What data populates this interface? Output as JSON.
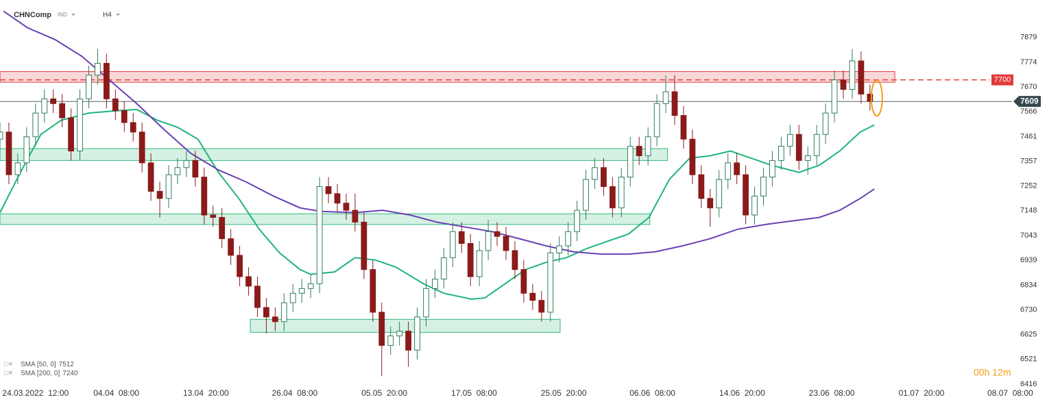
{
  "chart_data": {
    "type": "candlestick",
    "symbol": "CHNComp",
    "market": "IND",
    "interval": "H4",
    "countdown": "00h 12m",
    "xlim": [
      0,
      114
    ],
    "ylim": [
      6405,
      8037
    ],
    "yticks": [
      7879,
      7774,
      7670,
      7566,
      7461,
      7357,
      7252,
      7148,
      7043,
      6939,
      6834,
      6730,
      6625,
      6521,
      6416
    ],
    "xticks": [
      {
        "value": 4,
        "label": "24.03.2022  12:00"
      },
      {
        "value": 13.1,
        "label": "04.04  08:00"
      },
      {
        "value": 23.2,
        "label": "13.04  20:00"
      },
      {
        "value": 33.2,
        "label": "26.04  08:00"
      },
      {
        "value": 43.3,
        "label": "05.05  20:00"
      },
      {
        "value": 53.4,
        "label": "17.05  08:00"
      },
      {
        "value": 63.5,
        "label": "25.05  20:00"
      },
      {
        "value": 73.5,
        "label": "06.06  08:00"
      },
      {
        "value": 83.6,
        "label": "14.06  20:00"
      },
      {
        "value": 93.7,
        "label": "23.06  08:00"
      },
      {
        "value": 103.8,
        "label": "01.07  20:00"
      },
      {
        "value": 113.8,
        "label": "08.07  08:00"
      }
    ],
    "up_color": "#2e7d5b",
    "down_color": "#8b1a1a",
    "x": [
      0,
      1,
      2,
      3,
      4,
      5,
      6,
      7,
      8,
      9,
      10,
      11,
      12,
      13,
      14,
      15,
      16,
      17,
      18,
      19,
      20,
      21,
      22,
      23,
      24,
      25,
      26,
      27,
      28,
      29,
      30,
      31,
      32,
      33,
      34,
      35,
      36,
      37,
      38,
      39,
      40,
      41,
      42,
      43,
      44,
      45,
      46,
      47,
      48,
      49,
      50,
      51,
      52,
      53,
      54,
      55,
      56,
      57,
      58,
      59,
      60,
      61,
      62,
      63,
      64,
      65,
      66,
      67,
      68,
      69,
      70,
      71,
      72,
      73,
      74,
      75,
      76,
      77,
      78,
      79,
      80,
      81,
      82,
      83,
      84,
      85,
      86,
      87,
      88,
      89,
      90,
      91,
      92,
      93,
      94,
      95,
      96,
      97,
      98
    ],
    "open": [
      7450,
      7480,
      7300,
      7350,
      7460,
      7560,
      7620,
      7600,
      7540,
      7400,
      7620,
      7720,
      7770,
      7620,
      7570,
      7520,
      7480,
      7350,
      7230,
      7200,
      7300,
      7330,
      7360,
      7290,
      7130,
      7120,
      7030,
      6960,
      6870,
      6830,
      6740,
      6700,
      6680,
      6760,
      6800,
      6820,
      6840,
      7250,
      7220,
      7180,
      7150,
      7100,
      6900,
      6720,
      6580,
      6620,
      6640,
      6560,
      6700,
      6820,
      6860,
      6950,
      7060,
      7010,
      6870,
      6980,
      7060,
      7040,
      6980,
      6900,
      6800,
      6770,
      6720,
      6970,
      7000,
      7060,
      7150,
      7280,
      7330,
      7250,
      7160,
      7290,
      7420,
      7380,
      7460,
      7600,
      7650,
      7550,
      7450,
      7300,
      7200,
      7160,
      7280,
      7350,
      7300,
      7130,
      7210,
      7290,
      7360,
      7420,
      7470,
      7360,
      7380,
      7470,
      7560,
      7700,
      7660,
      7780,
      7640
    ],
    "high": [
      7520,
      7520,
      7390,
      7500,
      7600,
      7660,
      7660,
      7640,
      7580,
      7660,
      7760,
      7830,
      7810,
      7660,
      7610,
      7560,
      7520,
      7390,
      7270,
      7340,
      7370,
      7400,
      7400,
      7330,
      7170,
      7160,
      7070,
      7000,
      6910,
      6870,
      6780,
      6740,
      6800,
      6840,
      6860,
      6880,
      7290,
      7290,
      7260,
      7220,
      7220,
      7140,
      6940,
      6760,
      6660,
      6680,
      6680,
      6740,
      6860,
      6900,
      6990,
      7100,
      7100,
      7050,
      7020,
      7110,
      7100,
      7080,
      7020,
      6940,
      6840,
      6810,
      7010,
      7040,
      7100,
      7190,
      7320,
      7370,
      7370,
      7290,
      7330,
      7460,
      7460,
      7500,
      7640,
      7720,
      7720,
      7590,
      7490,
      7340,
      7240,
      7320,
      7390,
      7390,
      7340,
      7250,
      7330,
      7400,
      7460,
      7510,
      7510,
      7420,
      7510,
      7600,
      7740,
      7740,
      7830,
      7820,
      7680
    ],
    "low": [
      7410,
      7260,
      7260,
      7310,
      7420,
      7520,
      7560,
      7500,
      7360,
      7360,
      7580,
      7680,
      7580,
      7530,
      7480,
      7440,
      7310,
      7190,
      7120,
      7160,
      7260,
      7290,
      7250,
      7090,
      7080,
      6990,
      6920,
      6830,
      6790,
      6700,
      6630,
      6640,
      6640,
      6720,
      6760,
      6780,
      6800,
      7180,
      7140,
      7110,
      7060,
      6860,
      6680,
      6450,
      6540,
      6580,
      6490,
      6520,
      6660,
      6780,
      6820,
      6910,
      6970,
      6830,
      6830,
      6940,
      7000,
      6940,
      6860,
      6760,
      6730,
      6680,
      6680,
      6930,
      6960,
      7020,
      7110,
      7240,
      7210,
      7120,
      7120,
      7250,
      7340,
      7340,
      7420,
      7560,
      7510,
      7410,
      7260,
      7160,
      7080,
      7120,
      7240,
      7260,
      7090,
      7090,
      7170,
      7250,
      7320,
      7380,
      7320,
      7300,
      7340,
      7430,
      7520,
      7620,
      7620,
      7600,
      7570
    ],
    "close": [
      7480,
      7300,
      7350,
      7460,
      7560,
      7620,
      7600,
      7540,
      7400,
      7620,
      7720,
      7770,
      7620,
      7570,
      7520,
      7480,
      7350,
      7230,
      7200,
      7300,
      7330,
      7360,
      7290,
      7130,
      7120,
      7030,
      6960,
      6870,
      6830,
      6740,
      6700,
      6680,
      6760,
      6800,
      6820,
      6840,
      7250,
      7220,
      7180,
      7150,
      7100,
      6900,
      6720,
      6580,
      6620,
      6640,
      6560,
      6700,
      6820,
      6860,
      6950,
      7060,
      7010,
      6870,
      6980,
      7060,
      7040,
      6980,
      6900,
      6800,
      6770,
      6720,
      6970,
      7000,
      7060,
      7150,
      7280,
      7330,
      7250,
      7160,
      7290,
      7420,
      7380,
      7460,
      7600,
      7650,
      7550,
      7450,
      7300,
      7200,
      7160,
      7280,
      7350,
      7300,
      7130,
      7210,
      7290,
      7360,
      7420,
      7470,
      7360,
      7380,
      7470,
      7560,
      7700,
      7660,
      7780,
      7640,
      7609
    ],
    "series": [
      {
        "name": "SMA [50, 0]",
        "legend_value": 7512,
        "color": "#1db47a",
        "x": [
          0,
          2.3,
          4.6,
          6.9,
          10,
          13.1,
          15.4,
          17.7,
          20,
          22.3,
          24.6,
          26.9,
          29.2,
          31.5,
          33.8,
          35,
          37.7,
          40,
          42.3,
          44.6,
          47.7,
          50,
          53.1,
          54.6,
          56.9,
          59.2,
          61.5,
          63.8,
          66.2,
          68.5,
          70.8,
          73.1,
          75.4,
          77.7,
          80,
          82.3,
          84.6,
          86.9,
          90,
          92.3,
          94.6,
          96.9,
          98.5
        ],
        "values": [
          7140,
          7310,
          7470,
          7530,
          7560,
          7570,
          7575,
          7530,
          7500,
          7450,
          7310,
          7200,
          7070,
          6970,
          6900,
          6880,
          6890,
          6950,
          6940,
          6910,
          6840,
          6800,
          6775,
          6780,
          6840,
          6900,
          6930,
          6950,
          6990,
          7020,
          7050,
          7120,
          7280,
          7370,
          7380,
          7400,
          7370,
          7340,
          7310,
          7340,
          7400,
          7480,
          7510
        ]
      },
      {
        "name": "SMA [200, 0]",
        "legend_value": 7240,
        "color": "#6a3fb5",
        "x": [
          0.4,
          3.1,
          6.2,
          9.2,
          12.3,
          15.4,
          18.5,
          21.5,
          24.6,
          27.7,
          30.8,
          33.8,
          36.2,
          40,
          43.1,
          46.2,
          49.2,
          52.3,
          55.4,
          58.5,
          61.5,
          64.6,
          67.7,
          70.8,
          73.8,
          76.9,
          80,
          83.1,
          86.2,
          89.2,
          92.3,
          94.6,
          96.9,
          98.5
        ],
        "values": [
          7990,
          7920,
          7870,
          7800,
          7700,
          7600,
          7490,
          7390,
          7320,
          7270,
          7210,
          7160,
          7145,
          7140,
          7150,
          7130,
          7100,
          7080,
          7060,
          7030,
          7000,
          6975,
          6965,
          6965,
          6975,
          7000,
          7030,
          7070,
          7090,
          7105,
          7120,
          7150,
          7200,
          7240
        ]
      }
    ],
    "zones": [
      {
        "from": 7690,
        "to": 7735,
        "x_from": 0,
        "x_to": 100.8,
        "color": "#e23b3b"
      },
      {
        "from": 7360,
        "to": 7410,
        "x_from": 0,
        "x_to": 75.2,
        "color": "#2fb87a"
      },
      {
        "from": 7090,
        "to": 7135,
        "x_from": 0,
        "x_to": 73.2,
        "color": "#2fb87a"
      },
      {
        "from": 6635,
        "to": 6690,
        "x_from": 28.2,
        "x_to": 63.1,
        "color": "#2fb87a"
      }
    ],
    "level_line": {
      "value": 7700,
      "color": "#e23b3b"
    },
    "price_line": {
      "value": 7609,
      "color": "#37474f"
    }
  }
}
